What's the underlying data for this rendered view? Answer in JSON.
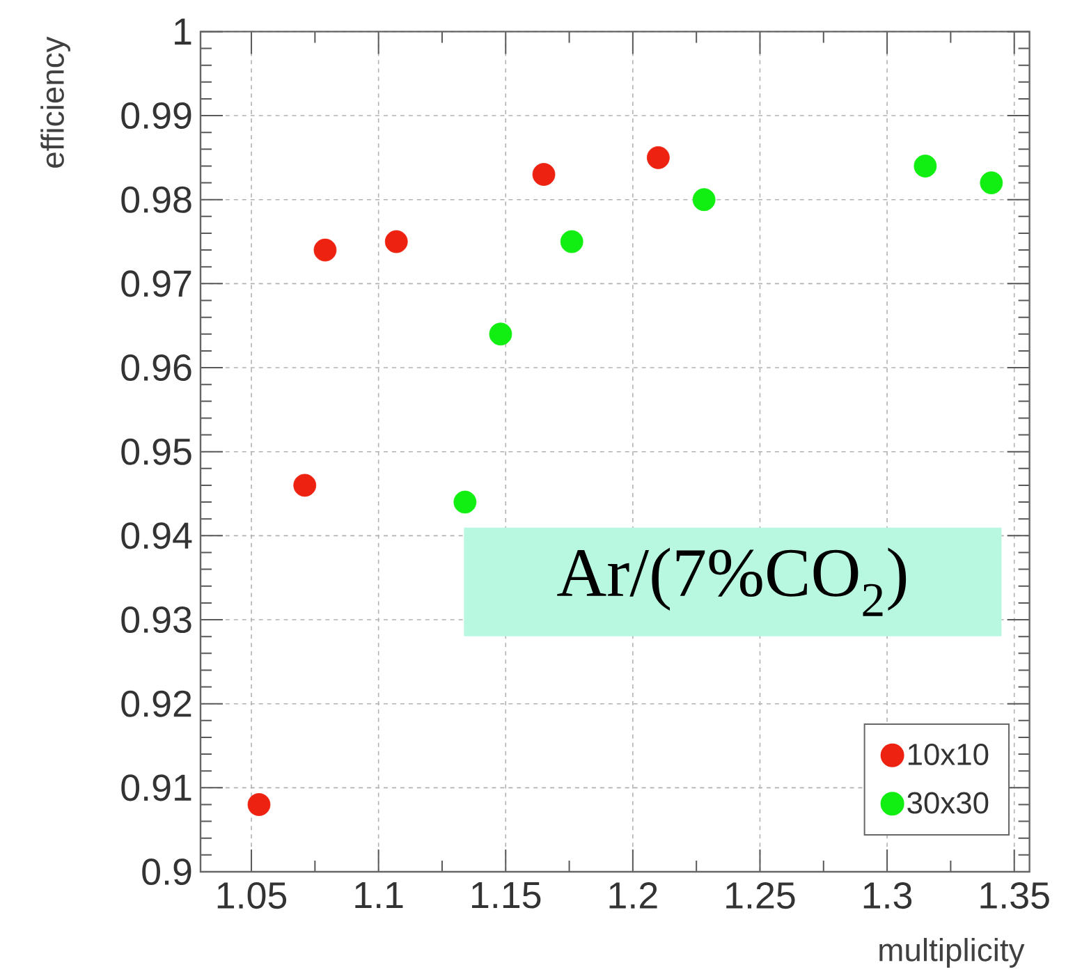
{
  "chart_data": {
    "type": "scatter",
    "xlabel": "multiplicity",
    "ylabel": "efficiency",
    "xlim": [
      1.03,
      1.356
    ],
    "ylim": [
      0.9,
      1
    ],
    "xticks": [
      1.05,
      1.1,
      1.15,
      1.2,
      1.25,
      1.3,
      1.35
    ],
    "yticks": [
      0.9,
      0.91,
      0.92,
      0.93,
      0.94,
      0.95,
      0.96,
      0.97,
      0.98,
      0.99,
      1
    ],
    "grid": true,
    "legend": "bottom right",
    "marker": "circle",
    "annotations": [
      "Ar/(7%CO$_{2}$)"
    ],
    "series": [
      {
        "name": "10x10",
        "color": "#ee2211",
        "x": [
          1.053,
          1.071,
          1.079,
          1.107,
          1.165,
          1.21
        ],
        "values": [
          0.908,
          0.946,
          0.974,
          0.975,
          0.983,
          0.985
        ]
      },
      {
        "name": "30x30",
        "color": "#11ee11",
        "x": [
          1.134,
          1.148,
          1.176,
          1.228,
          1.315,
          1.341
        ],
        "values": [
          0.944,
          0.964,
          0.975,
          0.98,
          0.984,
          0.982
        ]
      }
    ]
  }
}
